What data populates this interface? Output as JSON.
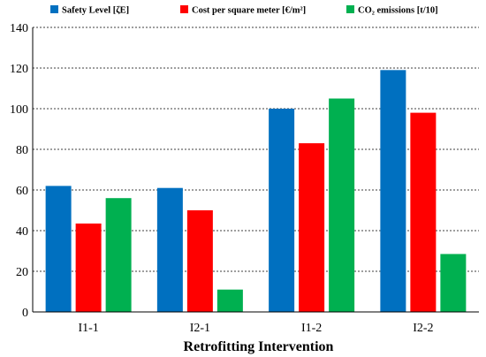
{
  "chart_data": {
    "type": "bar",
    "categories": [
      "I1-1",
      "I2-1",
      "I1-2",
      "I2-2"
    ],
    "series": [
      {
        "name": "Safety Level [ζE]",
        "color": "#0070C0",
        "values": [
          62,
          61,
          100,
          119
        ]
      },
      {
        "name": "Cost per square meter [€/m²]",
        "color": "#FF0000",
        "values": [
          43.5,
          50,
          83,
          98
        ]
      },
      {
        "name": "CO₂ emissions [t/10]",
        "color": "#00B050",
        "values": [
          56,
          11,
          105,
          28.5
        ]
      }
    ],
    "xlabel": "Retrofitting Intervention",
    "ylabel": "",
    "ylim": [
      0,
      140
    ],
    "yticks": [
      0,
      20,
      40,
      60,
      80,
      100,
      120,
      140
    ],
    "grid": "horizontal dashed",
    "legend": "top"
  }
}
